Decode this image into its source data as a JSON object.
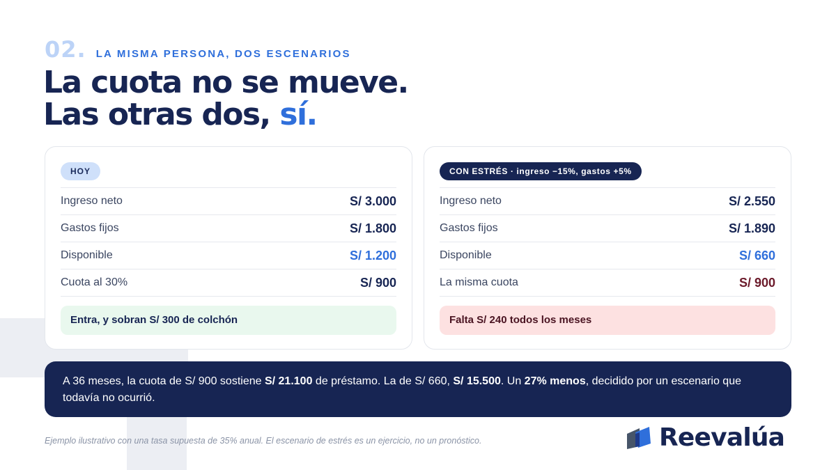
{
  "eyebrow": {
    "number": "02.",
    "label": "LA MISMA PERSONA, DOS ESCENARIOS"
  },
  "headline": {
    "line1": "La cuota no se mueve.",
    "line2_prefix": "Las otras dos, ",
    "line2_accent": "sí",
    "line2_suffix": "."
  },
  "cards": [
    {
      "tag": "HOY",
      "rows": [
        {
          "label": "Ingreso neto",
          "value": "S/ 3.000"
        },
        {
          "label": "Gastos fijos",
          "value": "S/ 1.800"
        },
        {
          "label": "Disponible",
          "value": "S/ 1.200"
        },
        {
          "label": "Cuota al 30%",
          "value": "S/ 900"
        }
      ],
      "note": "Entra, y sobran S/ 300 de colchón"
    },
    {
      "tag": "CON ESTRÉS · ingreso −15%, gastos +5%",
      "rows": [
        {
          "label": "Ingreso neto",
          "value": "S/ 2.550"
        },
        {
          "label": "Gastos fijos",
          "value": "S/ 1.890"
        },
        {
          "label": "Disponible",
          "value": "S/ 660"
        },
        {
          "label": "La misma cuota",
          "value": "S/ 900"
        }
      ],
      "note": "Falta S/ 240 todos los meses"
    }
  ],
  "banner": {
    "t1": "A 36 meses, la cuota de S/ 900 sostiene ",
    "b1": "S/ 21.100",
    "t2": " de préstamo. La de S/ 660, ",
    "b2": "S/ 15.500",
    "t3": ". Un ",
    "b3": "27% menos",
    "t4": ", decidido por un escenario que todavía no ocurrió."
  },
  "footnote": "Ejemplo ilustrativo con una tasa supuesta de 35% anual. El escenario de estrés es un ejercicio, no un pronóstico.",
  "logo": {
    "name": "Reevalúa",
    "icon": "reevalua-logo-icon"
  },
  "colors": {
    "navy": "#172553",
    "accent_blue": "#2f6fdb",
    "deficit_red": "#6b1a2a",
    "surplus_bg": "#e9f8ee",
    "deficit_bg": "#fde1e1"
  }
}
